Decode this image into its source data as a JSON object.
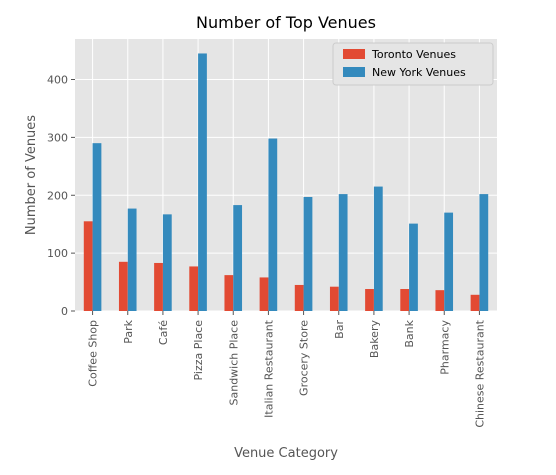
{
  "chart_data": {
    "type": "bar",
    "title": "Number of Top Venues",
    "xlabel": "Venue Category",
    "ylabel": "Number of Venues",
    "categories": [
      "Coffee Shop",
      "Park",
      "Café",
      "Pizza Place",
      "Sandwich Place",
      "Italian Restaurant",
      "Grocery Store",
      "Bar",
      "Bakery",
      "Bank",
      "Pharmacy",
      "Chinese Restaurant"
    ],
    "series": [
      {
        "name": "Toronto Venues",
        "color": "#e24a33",
        "values": [
          155,
          85,
          83,
          77,
          62,
          58,
          45,
          42,
          38,
          38,
          36,
          28
        ]
      },
      {
        "name": "New York Venues",
        "color": "#348abd",
        "values": [
          290,
          177,
          167,
          445,
          183,
          298,
          197,
          202,
          215,
          151,
          170,
          202
        ]
      }
    ],
    "ylim": [
      0,
      470
    ],
    "yticks": [
      0,
      100,
      200,
      300,
      400
    ],
    "grid": true,
    "legend_position": "top-right",
    "background": "#e5e5e5"
  }
}
